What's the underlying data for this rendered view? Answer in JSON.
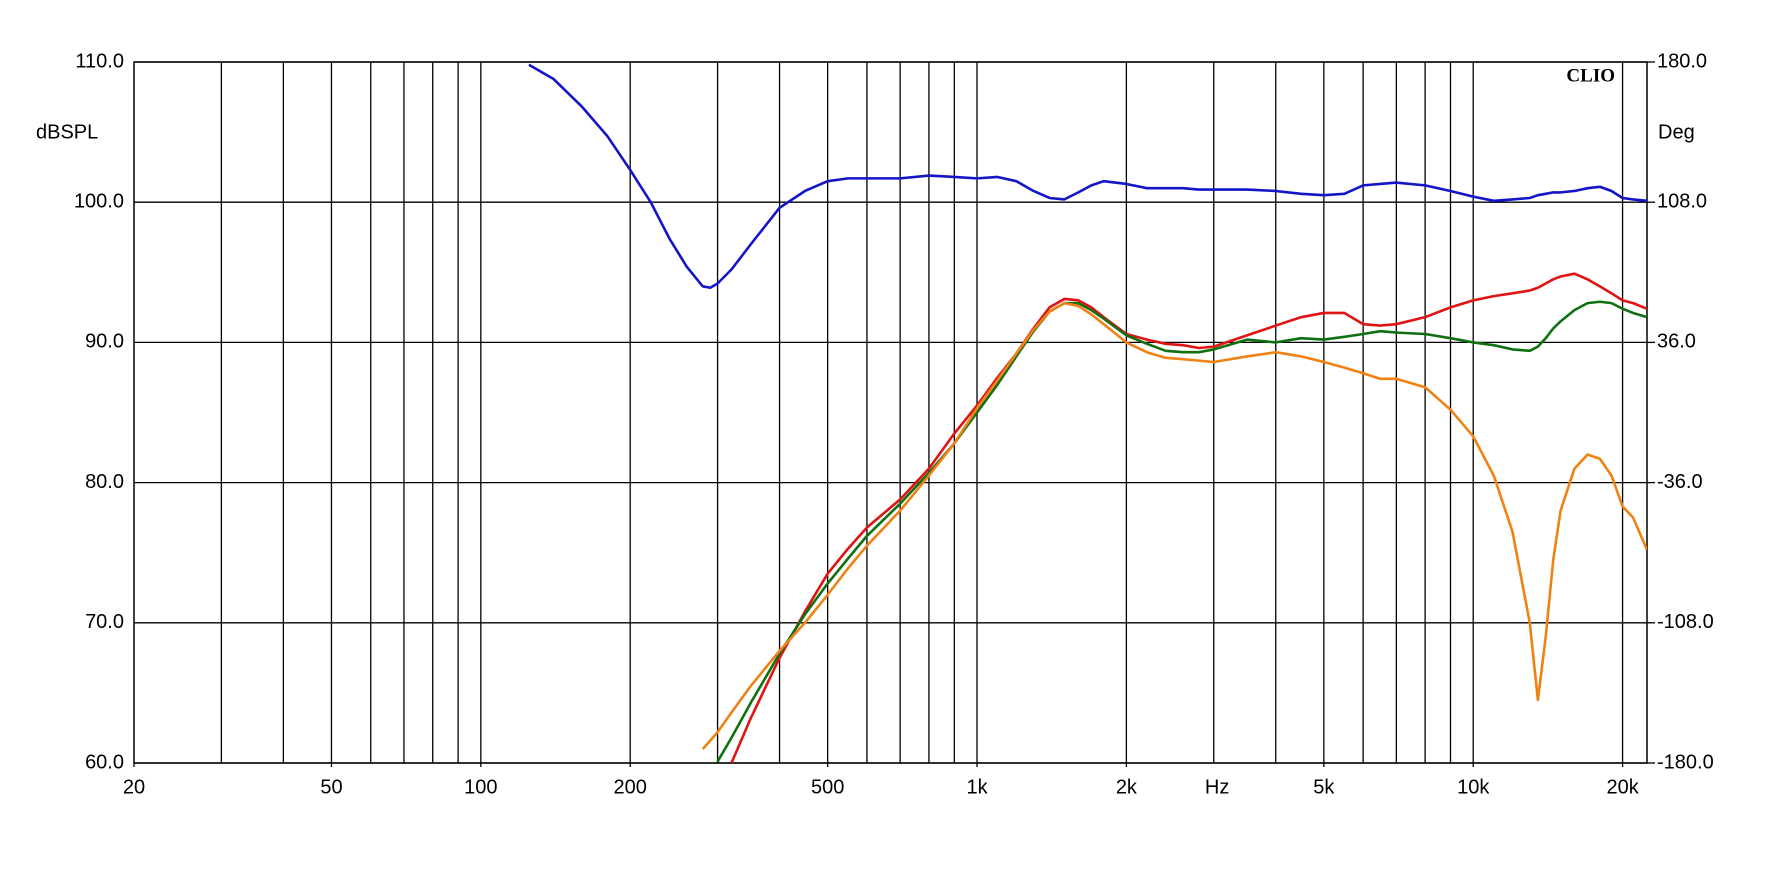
{
  "chart_data": {
    "type": "line",
    "ylabel": "dBSPL",
    "y2label": "Deg",
    "xlabel": "Hz",
    "watermark": "CLIO",
    "xscale": "log",
    "grid": true,
    "xlim": [
      20,
      22400
    ],
    "ylim": [
      60,
      110
    ],
    "y2lim": [
      -180,
      180
    ],
    "xticks": [
      20,
      50,
      100,
      200,
      500,
      {
        "value": 1000,
        "label": "1k"
      },
      {
        "value": 2000,
        "label": "2k"
      },
      {
        "value": 5000,
        "label": "5k"
      },
      {
        "value": 10000,
        "label": "10k"
      },
      {
        "value": 20000,
        "label": "20k"
      }
    ],
    "xgrid": [
      30,
      40,
      50,
      60,
      70,
      80,
      90,
      100,
      200,
      300,
      400,
      500,
      600,
      700,
      800,
      900,
      1000,
      2000,
      3000,
      4000,
      5000,
      6000,
      7000,
      8000,
      9000,
      10000,
      20000
    ],
    "yticks": [
      {
        "value": 60,
        "label": "60.0"
      },
      {
        "value": 70,
        "label": "70.0"
      },
      {
        "value": 80,
        "label": "80.0"
      },
      {
        "value": 90,
        "label": "90.0"
      },
      {
        "value": 100,
        "label": "100.0"
      },
      {
        "value": 110,
        "label": "110.0"
      }
    ],
    "y2ticks": [
      {
        "value": -180,
        "label": "-180.0"
      },
      {
        "value": -108,
        "label": "-108.0"
      },
      {
        "value": -36,
        "label": "-36.0"
      },
      {
        "value": 36,
        "label": "36.0"
      },
      {
        "value": 108,
        "label": "108.0"
      },
      {
        "value": 180,
        "label": "180.0"
      }
    ],
    "x": [
      125,
      140,
      160,
      180,
      200,
      220,
      240,
      260,
      280,
      290,
      300,
      320,
      350,
      400,
      450,
      500,
      550,
      600,
      700,
      800,
      900,
      1000,
      1100,
      1200,
      1300,
      1400,
      1500,
      1600,
      1700,
      1800,
      2000,
      2200,
      2400,
      2600,
      2800,
      3000,
      3500,
      4000,
      4500,
      5000,
      5500,
      6000,
      6500,
      7000,
      8000,
      9000,
      10000,
      11000,
      12000,
      13000,
      13500,
      14000,
      14500,
      15000,
      16000,
      17000,
      18000,
      19000,
      20000,
      21000,
      22400
    ],
    "series": [
      {
        "color": "#1414c8",
        "values": [
          109.8,
          108.8,
          106.8,
          104.7,
          102.3,
          100.0,
          97.4,
          95.4,
          94.0,
          93.9,
          94.2,
          95.2,
          97.0,
          99.6,
          100.8,
          101.5,
          101.7,
          101.7,
          101.7,
          101.9,
          101.8,
          101.7,
          101.8,
          101.5,
          100.8,
          100.3,
          100.2,
          100.7,
          101.2,
          101.5,
          101.3,
          101.0,
          101.0,
          101.0,
          100.9,
          100.9,
          100.9,
          100.8,
          100.6,
          100.5,
          100.6,
          101.2,
          101.3,
          101.4,
          101.2,
          100.8,
          100.4,
          100.1,
          100.2,
          100.3,
          100.5,
          100.6,
          100.7,
          100.7,
          100.8,
          101.0,
          101.1,
          100.8,
          100.3,
          100.2,
          100.1
        ]
      },
      {
        "color": "#e01414",
        "values": [
          null,
          null,
          null,
          null,
          null,
          null,
          null,
          null,
          null,
          null,
          null,
          60.0,
          63.2,
          67.5,
          70.8,
          73.5,
          75.3,
          76.8,
          78.8,
          81.0,
          83.5,
          85.5,
          87.5,
          89.2,
          91.0,
          92.5,
          93.1,
          93.0,
          92.5,
          91.8,
          90.6,
          90.2,
          89.9,
          89.8,
          89.6,
          89.7,
          90.5,
          91.2,
          91.8,
          92.1,
          92.1,
          91.3,
          91.2,
          91.3,
          91.8,
          92.5,
          93.0,
          93.3,
          93.5,
          93.7,
          93.9,
          94.2,
          94.5,
          94.7,
          94.9,
          94.5,
          94.0,
          93.5,
          93.0,
          92.8,
          92.4
        ]
      },
      {
        "color": "#107010",
        "values": [
          null,
          null,
          null,
          null,
          null,
          null,
          null,
          null,
          null,
          null,
          60.1,
          61.8,
          64.3,
          67.8,
          70.6,
          72.8,
          74.6,
          76.2,
          78.5,
          80.7,
          82.8,
          85.0,
          87.0,
          89.0,
          90.8,
          92.2,
          92.8,
          92.8,
          92.3,
          91.7,
          90.5,
          89.9,
          89.4,
          89.3,
          89.3,
          89.5,
          90.2,
          90.0,
          90.3,
          90.2,
          90.4,
          90.6,
          90.8,
          90.7,
          90.6,
          90.3,
          90.0,
          89.8,
          89.5,
          89.4,
          89.7,
          90.3,
          91.0,
          91.5,
          92.3,
          92.8,
          92.9,
          92.8,
          92.4,
          92.1,
          91.8
        ]
      },
      {
        "color": "#f08214",
        "values": [
          null,
          null,
          null,
          null,
          null,
          null,
          null,
          null,
          61.0,
          61.6,
          62.2,
          63.6,
          65.5,
          68.0,
          70.0,
          72.0,
          73.9,
          75.5,
          78.0,
          80.5,
          82.8,
          85.3,
          87.3,
          89.2,
          90.9,
          92.2,
          92.8,
          92.6,
          92.0,
          91.3,
          90.0,
          89.3,
          88.9,
          88.8,
          88.7,
          88.6,
          89.0,
          89.3,
          89.0,
          88.6,
          88.2,
          87.8,
          87.4,
          87.4,
          86.8,
          85.2,
          83.3,
          80.5,
          76.5,
          70.0,
          64.5,
          69.0,
          74.5,
          78.0,
          81.0,
          82.0,
          81.7,
          80.5,
          78.3,
          77.5,
          75.2
        ]
      }
    ]
  }
}
